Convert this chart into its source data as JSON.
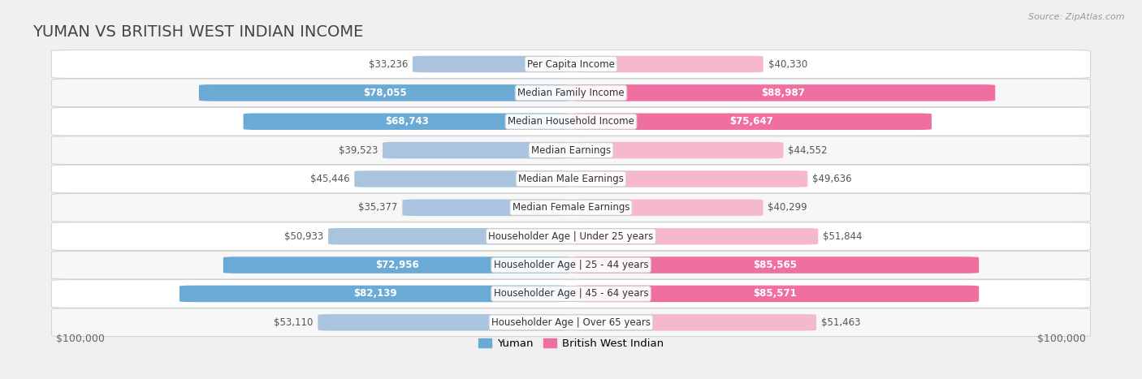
{
  "title": "YUMAN VS BRITISH WEST INDIAN INCOME",
  "source": "Source: ZipAtlas.com",
  "categories": [
    "Per Capita Income",
    "Median Family Income",
    "Median Household Income",
    "Median Earnings",
    "Median Male Earnings",
    "Median Female Earnings",
    "Householder Age | Under 25 years",
    "Householder Age | 25 - 44 years",
    "Householder Age | 45 - 64 years",
    "Householder Age | Over 65 years"
  ],
  "yuman_values": [
    33236,
    78055,
    68743,
    39523,
    45446,
    35377,
    50933,
    72956,
    82139,
    53110
  ],
  "bwi_values": [
    40330,
    88987,
    75647,
    44552,
    49636,
    40299,
    51844,
    85565,
    85571,
    51463
  ],
  "yuman_labels": [
    "$33,236",
    "$78,055",
    "$68,743",
    "$39,523",
    "$45,446",
    "$35,377",
    "$50,933",
    "$72,956",
    "$82,139",
    "$53,110"
  ],
  "bwi_labels": [
    "$40,330",
    "$88,987",
    "$75,647",
    "$44,552",
    "$49,636",
    "$40,299",
    "$51,844",
    "$85,565",
    "$85,571",
    "$51,463"
  ],
  "max_val": 100000,
  "yuman_color_light": "#aac4e0",
  "yuman_color_dark": "#6aaad4",
  "bwi_color_light": "#f5b8cf",
  "bwi_color_dark": "#ef6fa0",
  "yuman_inside_threshold": 60000,
  "bwi_inside_threshold": 60000,
  "bar_height": 0.58,
  "bg_color": "#f0f0f0",
  "row_bg_odd": "#ffffff",
  "row_bg_even": "#f7f7f7",
  "legend_yuman": "Yuman",
  "legend_bwi": "British West Indian",
  "xlabel_left": "$100,000",
  "xlabel_right": "$100,000",
  "title_fontsize": 14,
  "label_fontsize": 8.5,
  "category_fontsize": 8.5,
  "title_color": "#444444",
  "source_color": "#999999"
}
